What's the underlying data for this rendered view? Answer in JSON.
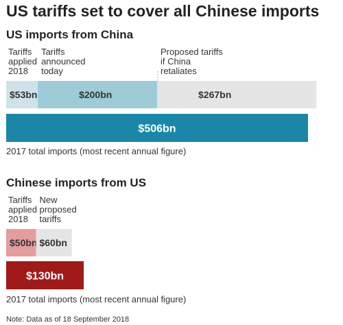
{
  "title": "US tariffs set to cover all Chinese imports",
  "note": "Note: Data as of 18 September 2018",
  "colors": {
    "us_applied": "#cfe2ea",
    "us_announced": "#9ecbd8",
    "us_proposed": "#e5e5e5",
    "us_total": "#1a87a8",
    "cn_applied": "#e59c9c",
    "cn_proposed": "#e5e5e5",
    "cn_total": "#a01a1a"
  },
  "chart_data": [
    {
      "type": "bar",
      "title": "US imports from China",
      "unit": "bn",
      "series": [
        {
          "name": "Tariffs applied 2018",
          "label_lines": [
            "Tariffs",
            "applied",
            "2018"
          ],
          "value": 53,
          "value_label": "$53bn",
          "color_key": "us_applied"
        },
        {
          "name": "Tariffs announced today",
          "label_lines": [
            "Tariffs",
            "announced",
            "today"
          ],
          "value": 200,
          "value_label": "$200bn",
          "color_key": "us_announced"
        },
        {
          "name": "Proposed tariffs if China retaliates",
          "label_lines": [
            "Proposed tariffs",
            "if China",
            "retaliates"
          ],
          "value": 267,
          "value_label": "$267bn",
          "color_key": "us_proposed"
        }
      ],
      "total": {
        "value": 506,
        "value_label": "$506bn",
        "color_key": "us_total"
      },
      "caption": "2017 total imports (most recent annual figure)"
    },
    {
      "type": "bar",
      "title": "Chinese imports from US",
      "unit": "bn",
      "series": [
        {
          "name": "Tariffs applied 2018",
          "label_lines": [
            "Tariffs",
            "applied",
            "2018"
          ],
          "value": 50,
          "value_label": "$50bn",
          "color_key": "cn_applied"
        },
        {
          "name": "New proposed tariffs",
          "label_lines": [
            "New",
            "proposed",
            "tariffs"
          ],
          "value": 60,
          "value_label": "$60bn",
          "color_key": "cn_proposed"
        }
      ],
      "total": {
        "value": 130,
        "value_label": "$130bn",
        "color_key": "cn_total"
      },
      "caption": "2017 total imports (most recent annual figure)"
    }
  ]
}
